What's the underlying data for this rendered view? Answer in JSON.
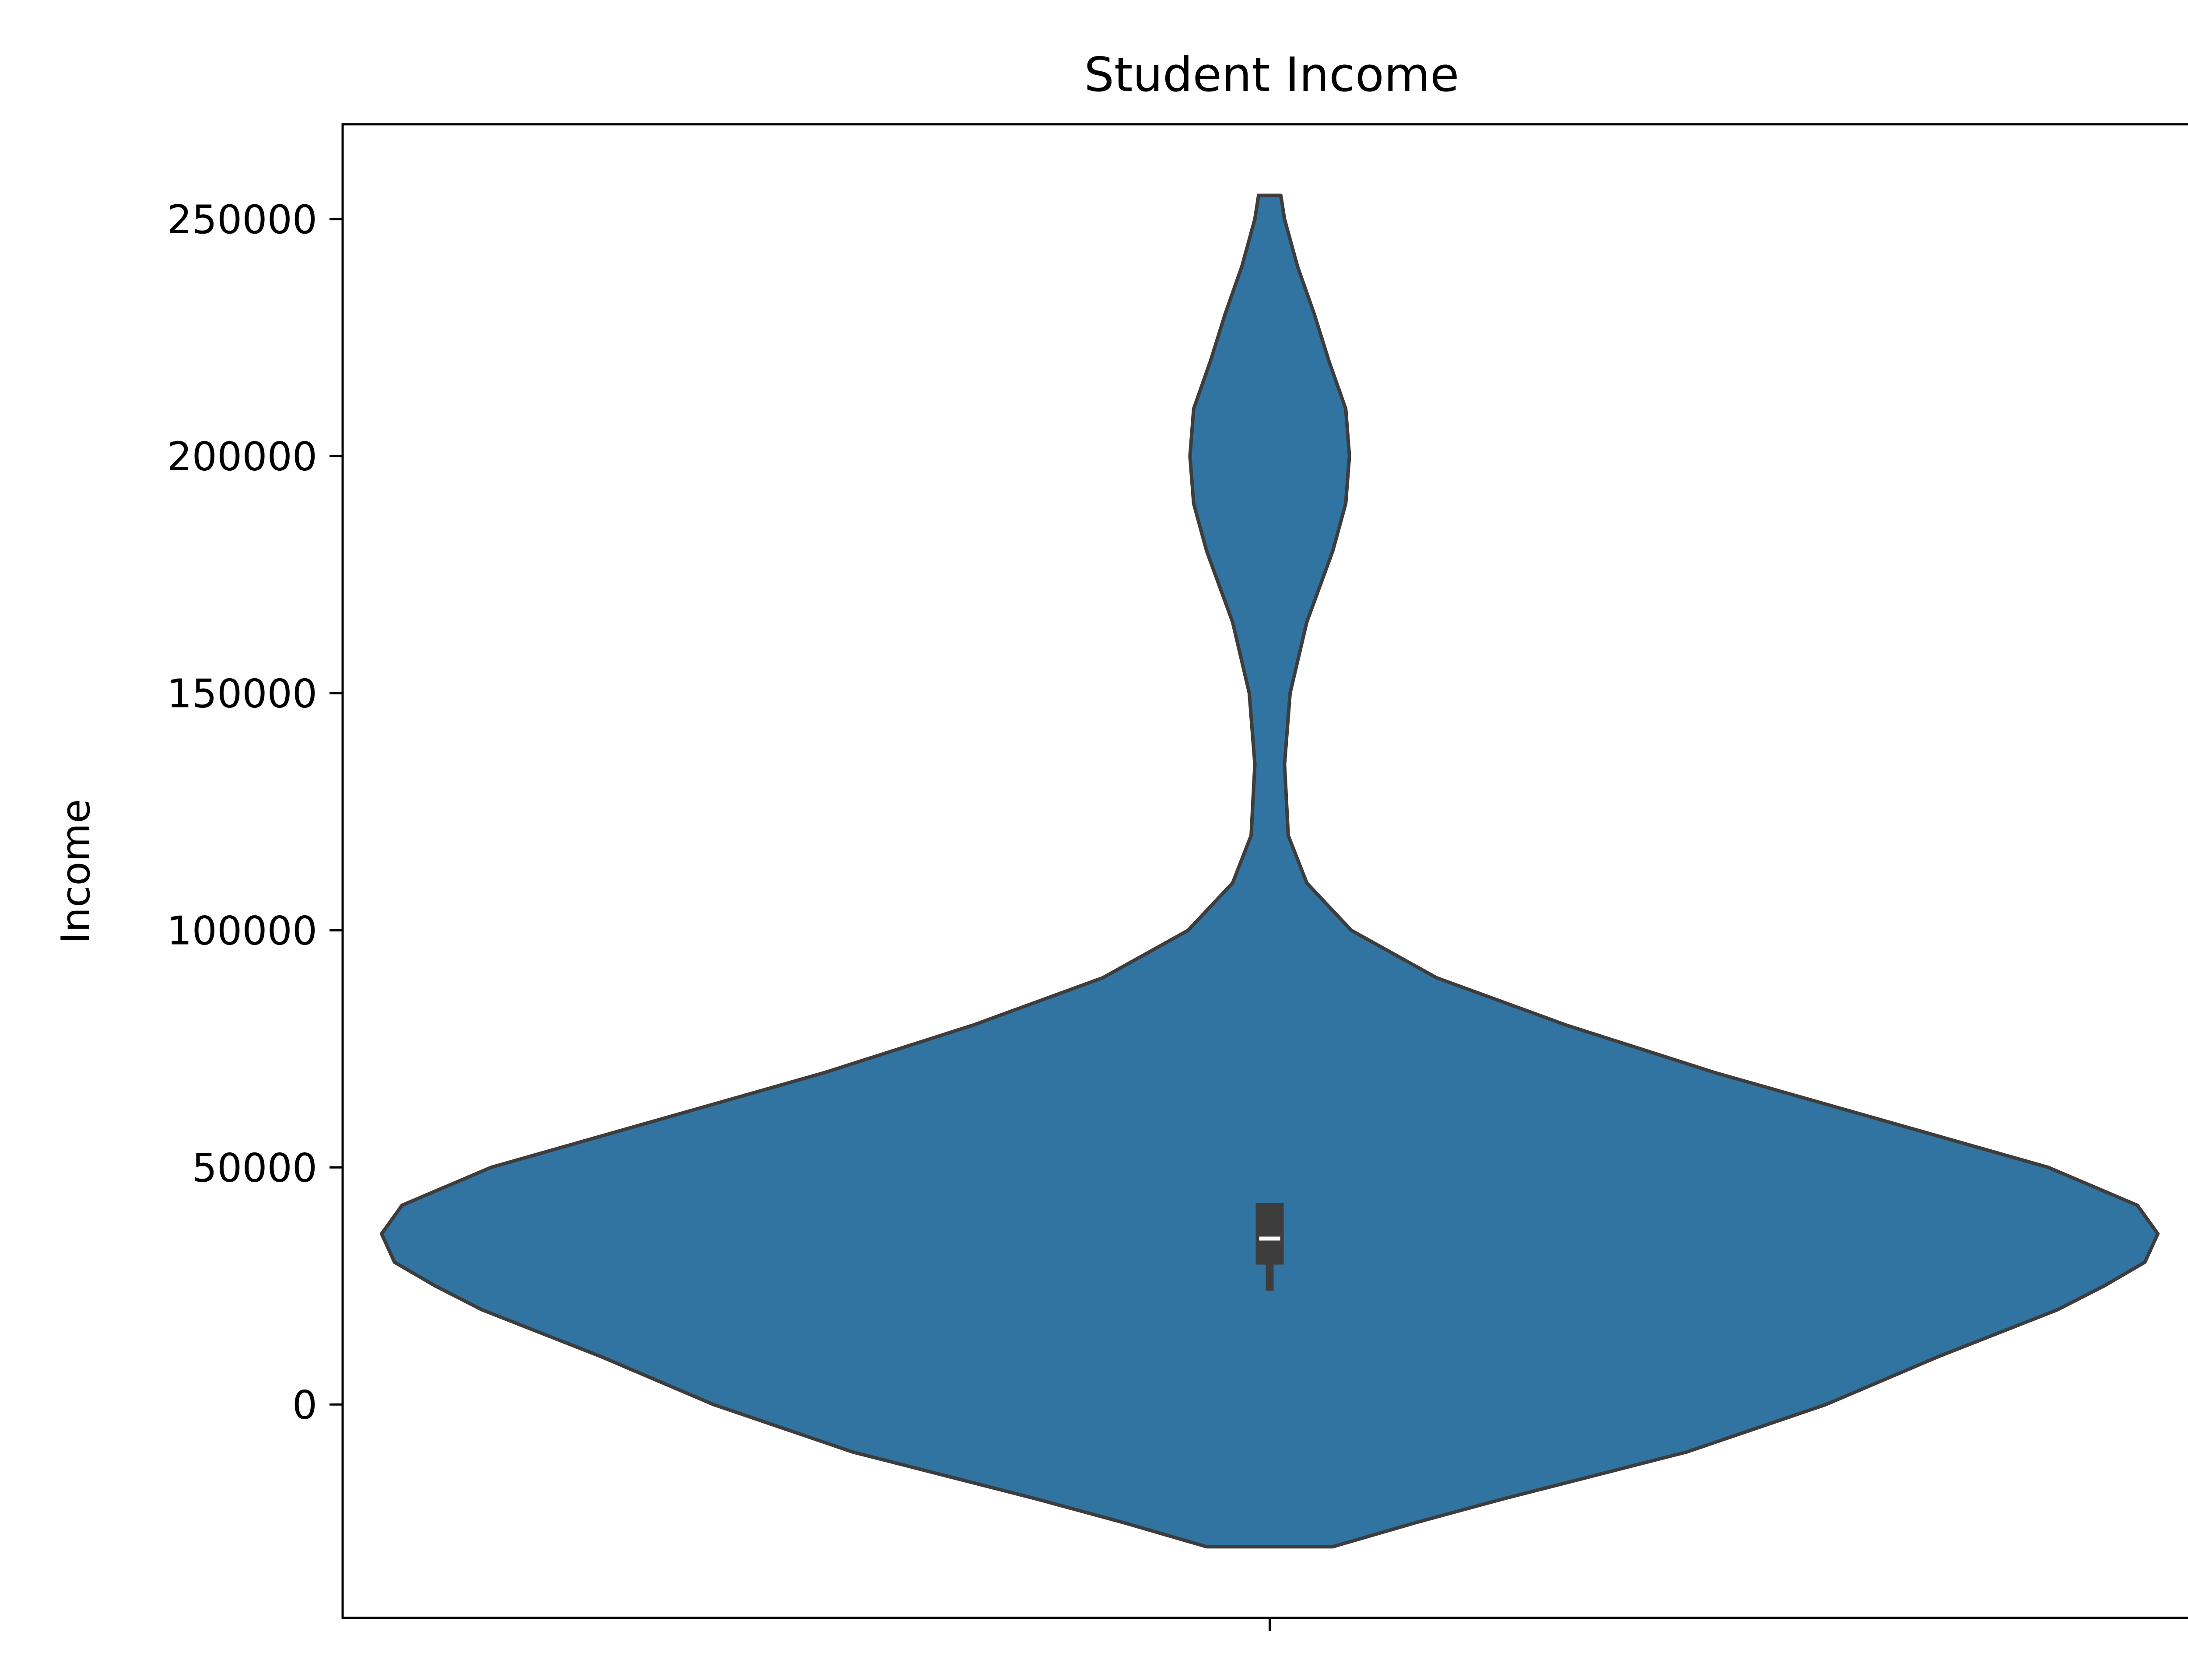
{
  "chart_data": {
    "type": "violin",
    "title": "Student Income",
    "xlabel": "",
    "ylabel": "Income",
    "x_tick_labels": [
      ""
    ],
    "ylim": [
      -45000,
      270000
    ],
    "y_ticks": [
      0,
      50000,
      100000,
      150000,
      200000,
      250000
    ],
    "grid": false,
    "legend": "none",
    "series": [
      {
        "category": "",
        "color": "#3274a1",
        "edge_color": "#3d3d3d",
        "range": [
          -30000,
          255000
        ],
        "density_profile": [
          {
            "y": -30000,
            "half_width": 0.034
          },
          {
            "y": -25000,
            "half_width": 0.078
          },
          {
            "y": -20000,
            "half_width": 0.125
          },
          {
            "y": -10000,
            "half_width": 0.225
          },
          {
            "y": 0,
            "half_width": 0.3
          },
          {
            "y": 10000,
            "half_width": 0.36
          },
          {
            "y": 20000,
            "half_width": 0.425
          },
          {
            "y": 25000,
            "half_width": 0.45
          },
          {
            "y": 30000,
            "half_width": 0.472
          },
          {
            "y": 36000,
            "half_width": 0.479
          },
          {
            "y": 42000,
            "half_width": 0.468
          },
          {
            "y": 50000,
            "half_width": 0.42
          },
          {
            "y": 60000,
            "half_width": 0.33
          },
          {
            "y": 70000,
            "half_width": 0.24
          },
          {
            "y": 80000,
            "half_width": 0.16
          },
          {
            "y": 90000,
            "half_width": 0.09
          },
          {
            "y": 100000,
            "half_width": 0.044
          },
          {
            "y": 110000,
            "half_width": 0.02
          },
          {
            "y": 120000,
            "half_width": 0.01
          },
          {
            "y": 135000,
            "half_width": 0.008
          },
          {
            "y": 150000,
            "half_width": 0.011
          },
          {
            "y": 165000,
            "half_width": 0.02
          },
          {
            "y": 180000,
            "half_width": 0.034
          },
          {
            "y": 190000,
            "half_width": 0.041
          },
          {
            "y": 200000,
            "half_width": 0.043
          },
          {
            "y": 210000,
            "half_width": 0.041
          },
          {
            "y": 220000,
            "half_width": 0.032
          },
          {
            "y": 230000,
            "half_width": 0.024
          },
          {
            "y": 240000,
            "half_width": 0.015
          },
          {
            "y": 250000,
            "half_width": 0.008
          },
          {
            "y": 255000,
            "half_width": 0.006
          }
        ],
        "box": {
          "q1": 29500,
          "median": 35000,
          "q3": 42500,
          "whisker_low": 24000,
          "whisker_high": 42500
        }
      }
    ]
  }
}
